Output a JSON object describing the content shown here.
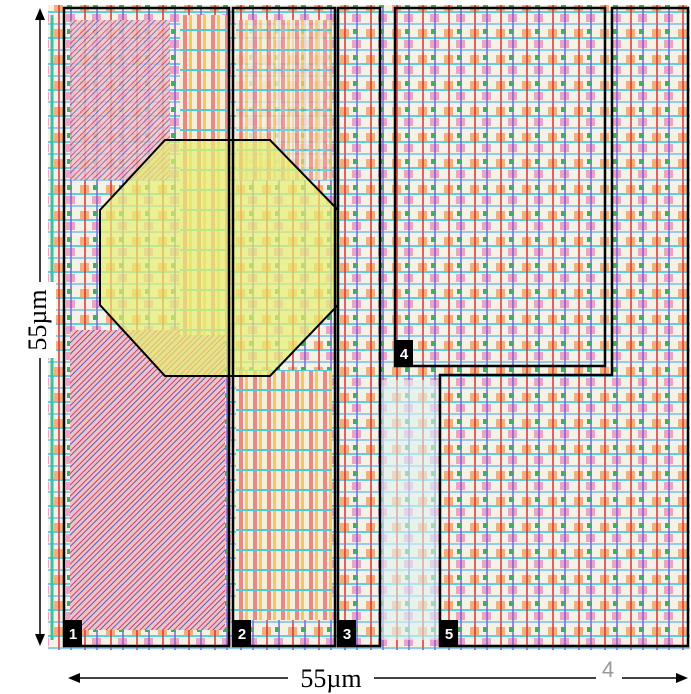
{
  "dimensions": {
    "vertical": "55µm",
    "horizontal": "55µm"
  },
  "regions": [
    {
      "label": "1"
    },
    {
      "label": "2"
    },
    {
      "label": "3"
    },
    {
      "label": "4"
    },
    {
      "label": "5"
    }
  ],
  "page_number": "4"
}
